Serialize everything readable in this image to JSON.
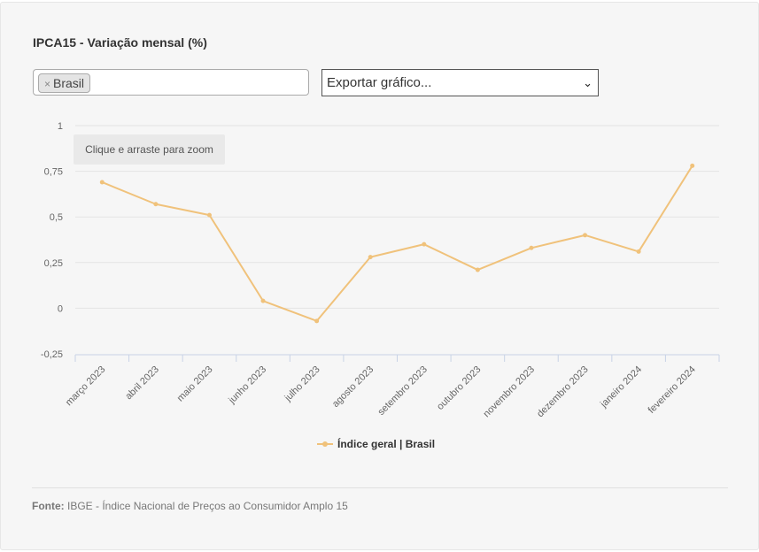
{
  "header": {
    "title": "IPCA15 - Variação mensal (%)"
  },
  "filter": {
    "tag_remove": "×",
    "tag_label": "Brasil"
  },
  "export": {
    "label": "Exportar gráfico...",
    "chevron": "⌄"
  },
  "zoom_tip": "Clique e arraste para zoom",
  "chart_data": {
    "type": "line",
    "title": "IPCA15 - Variação mensal (%)",
    "xlabel": "",
    "ylabel": "",
    "ylim": [
      -0.25,
      1
    ],
    "yticks": [
      -0.25,
      0,
      0.25,
      0.5,
      0.75,
      1
    ],
    "ytick_labels": [
      "-0,25",
      "0",
      "0,25",
      "0,5",
      "0,75",
      "1"
    ],
    "grid": true,
    "legend_position": "bottom-center",
    "categories": [
      "março 2023",
      "abril 2023",
      "maio 2023",
      "junho 2023",
      "julho 2023",
      "agosto 2023",
      "setembro 2023",
      "outubro 2023",
      "novembro 2023",
      "dezembro 2023",
      "janeiro 2024",
      "fevereiro 2024"
    ],
    "series": [
      {
        "name": "Índice geral | Brasil",
        "color": "#f0c27b",
        "values": [
          0.69,
          0.57,
          0.51,
          0.04,
          -0.07,
          0.28,
          0.35,
          0.21,
          0.33,
          0.4,
          0.31,
          0.78
        ]
      }
    ]
  },
  "legend": {
    "label": "Índice geral | Brasil"
  },
  "footer": {
    "source_label": "Fonte:",
    "source_text": "IBGE - Índice Nacional de Preços ao Consumidor Amplo 15"
  }
}
